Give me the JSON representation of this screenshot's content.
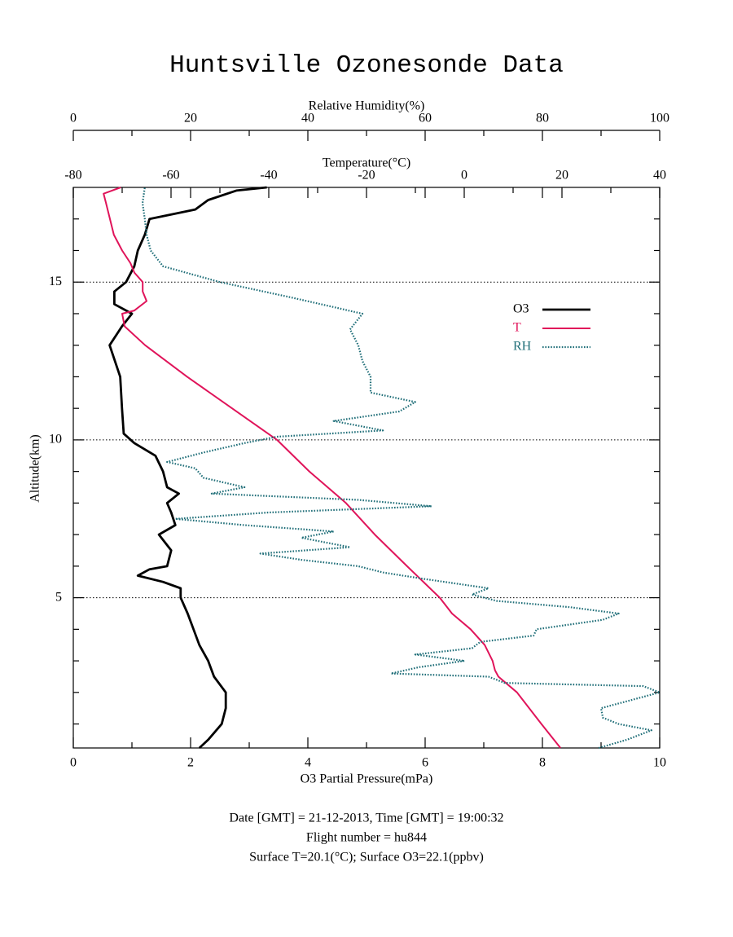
{
  "chart_data": {
    "type": "line",
    "title": "Huntsville Ozonesonde Data",
    "xlabel": "O3 Partial Pressure(mPa)",
    "xlim": [
      0,
      10
    ],
    "xticks": [
      0,
      2,
      4,
      6,
      8,
      10
    ],
    "xticks_minor": [
      1,
      3,
      5,
      7,
      9
    ],
    "x2label": "Temperature(°C)",
    "x2lim": [
      -80,
      40
    ],
    "x2ticks": [
      -80,
      -60,
      -40,
      -20,
      0,
      20,
      40
    ],
    "x2ticks_minor": [
      -70,
      -50,
      -30,
      -10,
      10,
      30
    ],
    "x3label": "Relative Humidity(%)",
    "x3lim": [
      0,
      100
    ],
    "x3ticks": [
      0,
      20,
      40,
      60,
      80,
      100
    ],
    "x3ticks_minor": [
      10,
      30,
      50,
      70,
      90
    ],
    "ylabel": "Altitude(km)",
    "ylim": [
      0.24,
      18
    ],
    "yticks": [
      5,
      10,
      15
    ],
    "yticks_minor": [
      1,
      2,
      3,
      4,
      6,
      7,
      8,
      9,
      11,
      12,
      13,
      14,
      16,
      17
    ],
    "grid": true,
    "legend": "upper right",
    "series": [
      {
        "name": "O3",
        "color": "#000000",
        "style": "solid",
        "axis": "x",
        "altitude": [
          0.24,
          0.5,
          1.0,
          1.5,
          2.0,
          2.5,
          3.0,
          3.5,
          4.0,
          4.5,
          5.0,
          5.3,
          5.5,
          5.7,
          5.9,
          6.0,
          6.5,
          7.0,
          7.3,
          7.7,
          8.0,
          8.3,
          8.5,
          9.0,
          9.5,
          9.9,
          10.2,
          11,
          12,
          13,
          13.6,
          14.0,
          14.3,
          14.7,
          15.0,
          15.5,
          16.0,
          16.5,
          17.0,
          17.3,
          17.6,
          17.9,
          18.0
        ],
        "values": [
          2.15,
          2.3,
          2.53,
          2.6,
          2.6,
          2.4,
          2.3,
          2.15,
          2.05,
          1.95,
          1.83,
          1.83,
          1.53,
          1.1,
          1.3,
          1.6,
          1.67,
          1.46,
          1.74,
          1.67,
          1.6,
          1.8,
          1.6,
          1.53,
          1.4,
          1.04,
          0.86,
          0.83,
          0.8,
          0.62,
          0.83,
          1.0,
          0.7,
          0.7,
          0.9,
          1.04,
          1.1,
          1.22,
          1.3,
          2.08,
          2.3,
          2.78,
          3.3
        ]
      },
      {
        "name": "T",
        "color": "#e0145a",
        "style": "solid",
        "axis": "x2",
        "altitude": [
          0.24,
          1.0,
          2.0,
          2.5,
          2.7,
          3.0,
          3.5,
          4.0,
          4.5,
          5.0,
          6.0,
          7.0,
          8.0,
          9.0,
          10,
          11,
          12,
          13,
          13.6,
          14.0,
          14.1,
          14.4,
          14.7,
          15,
          15.3,
          15.6,
          16,
          16.5,
          17,
          17.5,
          17.8,
          18
        ],
        "values": [
          19.7,
          15.8,
          10.8,
          7,
          6.3,
          5.8,
          4.2,
          1.3,
          -2.5,
          -5,
          -11.7,
          -18.3,
          -24.2,
          -31.7,
          -38.3,
          -47.5,
          -56.7,
          -65.3,
          -69.5,
          -70,
          -67.5,
          -65,
          -65.8,
          -65.8,
          -67.5,
          -68.3,
          -70,
          -71.7,
          -72.5,
          -73.3,
          -73.8,
          -70.3
        ]
      },
      {
        "name": "RH",
        "color": "#22707a",
        "style": "dotted",
        "axis": "x3",
        "altitude": [
          0.24,
          0.5,
          0.8,
          1.0,
          1.2,
          1.5,
          2.0,
          2.2,
          2.3,
          2.5,
          2.6,
          2.8,
          3.0,
          3.2,
          3.4,
          3.6,
          3.8,
          4.0,
          4.3,
          4.5,
          4.7,
          4.9,
          5.1,
          5.3,
          5.6,
          5.8,
          6.0,
          6.2,
          6.4,
          6.6,
          6.9,
          7.1,
          7.3,
          7.5,
          7.7,
          7.9,
          8.1,
          8.3,
          8.5,
          8.8,
          9.1,
          9.3,
          9.6,
          9.9,
          10.1,
          10.3,
          10.6,
          10.9,
          11.2,
          11.5,
          12,
          12.5,
          13,
          13.5,
          14,
          14.5,
          15,
          15.5,
          16,
          16.5,
          17,
          17.5,
          18
        ],
        "values": [
          89.6,
          94.4,
          98.6,
          93,
          90.3,
          90,
          100,
          97.2,
          73.6,
          70.8,
          54.2,
          59,
          66.7,
          58.3,
          68,
          69.4,
          78.5,
          79,
          90.3,
          93,
          84.7,
          72.2,
          68,
          70.8,
          59.7,
          52.8,
          48.6,
          38.9,
          31.9,
          47.2,
          38.9,
          44.4,
          29.2,
          17.4,
          33.3,
          61.1,
          48.6,
          23.6,
          29.2,
          22.2,
          20.8,
          16,
          22.2,
          29.2,
          34.7,
          52.8,
          44.4,
          55.6,
          58.3,
          50.7,
          50.7,
          49.3,
          48.6,
          47.2,
          49.3,
          37.5,
          25,
          15.3,
          13.2,
          12.5,
          12.2,
          11.8,
          12.2
        ]
      }
    ],
    "footer": [
      "Date [GMT] = 21-12-2013,  Time [GMT] = 19:00:32",
      "Flight number = hu844",
      "Surface T=20.1(°C); Surface O3=22.1(ppbv)"
    ]
  }
}
